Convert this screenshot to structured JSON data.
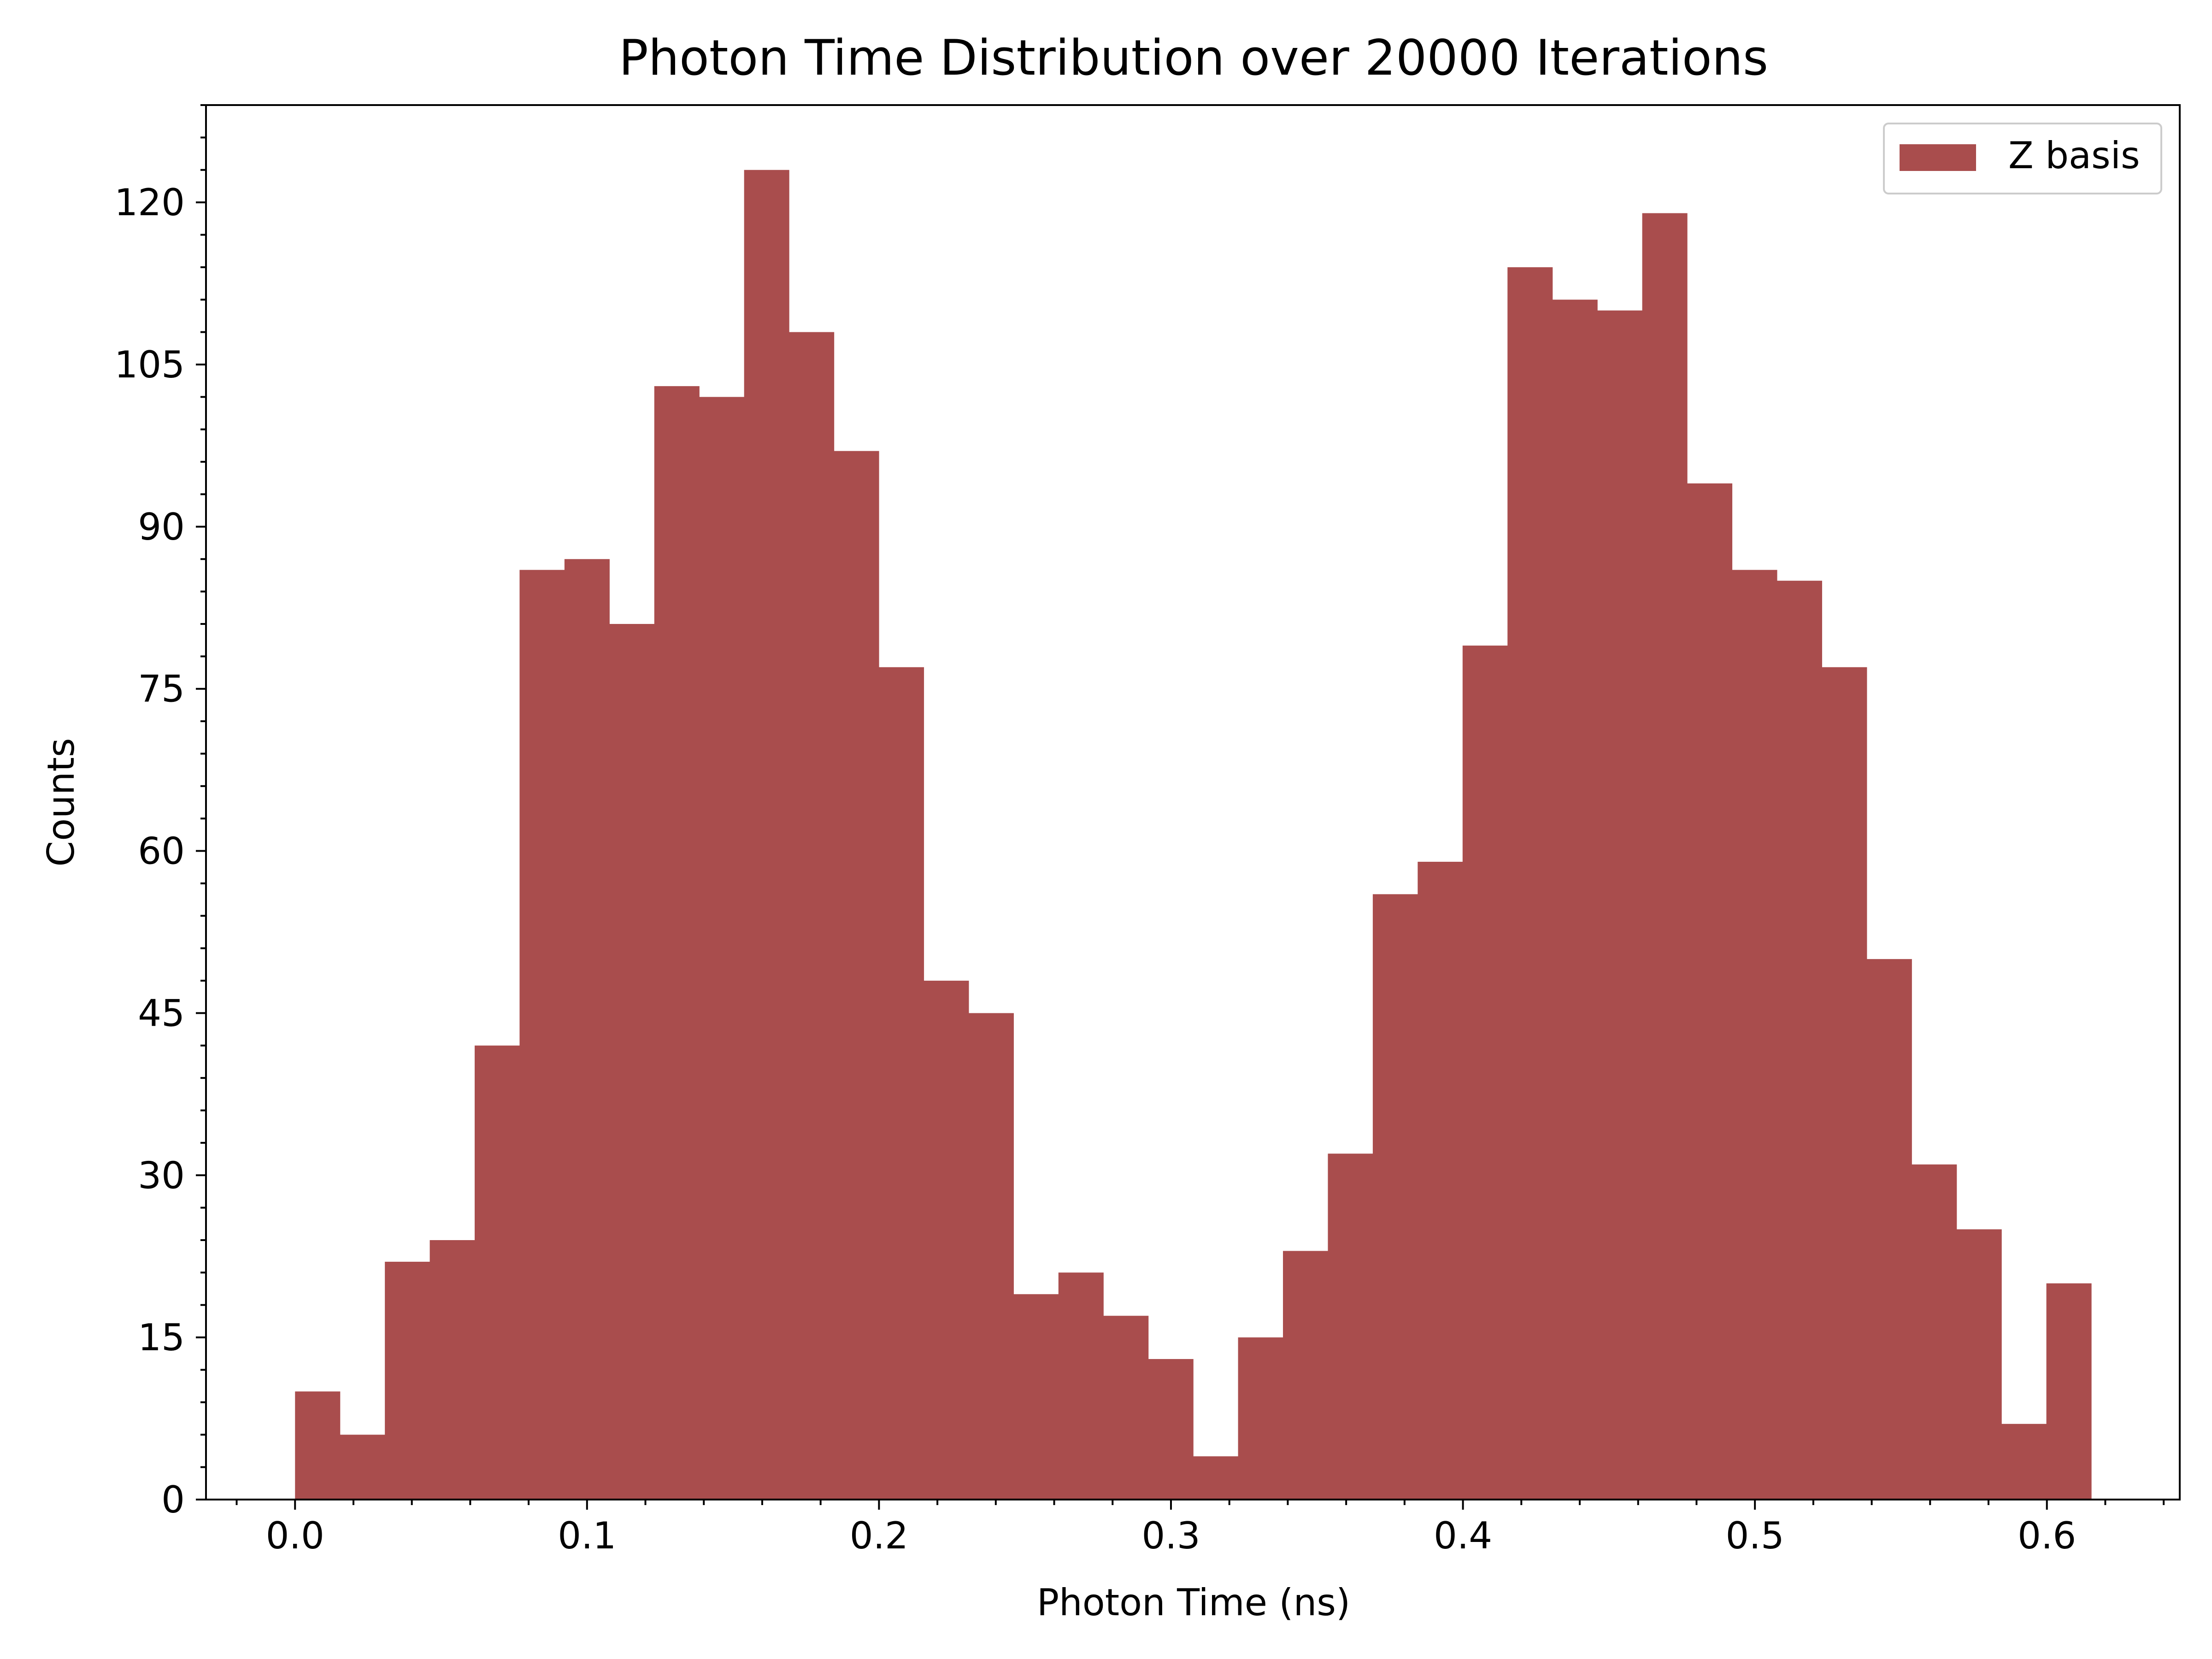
{
  "chart_data": {
    "type": "bar",
    "title": "Photon Time Distribution over 20000 Iterations",
    "xlabel": "Photon Time (ns)",
    "ylabel": "Counts",
    "xlim": [
      -0.0305,
      0.6455
    ],
    "ylim": [
      0,
      129
    ],
    "bin_start": 0.0,
    "bin_width": 0.01538,
    "xticks": [
      0.0,
      0.1,
      0.2,
      0.3,
      0.4,
      0.5,
      0.6
    ],
    "xtick_labels": [
      "0.0",
      "0.1",
      "0.2",
      "0.3",
      "0.4",
      "0.5",
      "0.6"
    ],
    "yticks": [
      0,
      15,
      30,
      45,
      60,
      75,
      90,
      105,
      120
    ],
    "ytick_labels": [
      "0",
      "15",
      "30",
      "45",
      "60",
      "75",
      "90",
      "105",
      "120"
    ],
    "grid": false,
    "legend_position": "top-right",
    "series": [
      {
        "name": "Z basis",
        "color": "#a94d4d",
        "values": [
          10,
          6,
          22,
          24,
          42,
          86,
          87,
          81,
          103,
          102,
          123,
          108,
          97,
          77,
          48,
          45,
          19,
          21,
          17,
          13,
          4,
          15,
          23,
          32,
          56,
          59,
          79,
          114,
          111,
          110,
          119,
          94,
          86,
          85,
          77,
          50,
          31,
          25,
          7,
          20
        ]
      }
    ]
  }
}
